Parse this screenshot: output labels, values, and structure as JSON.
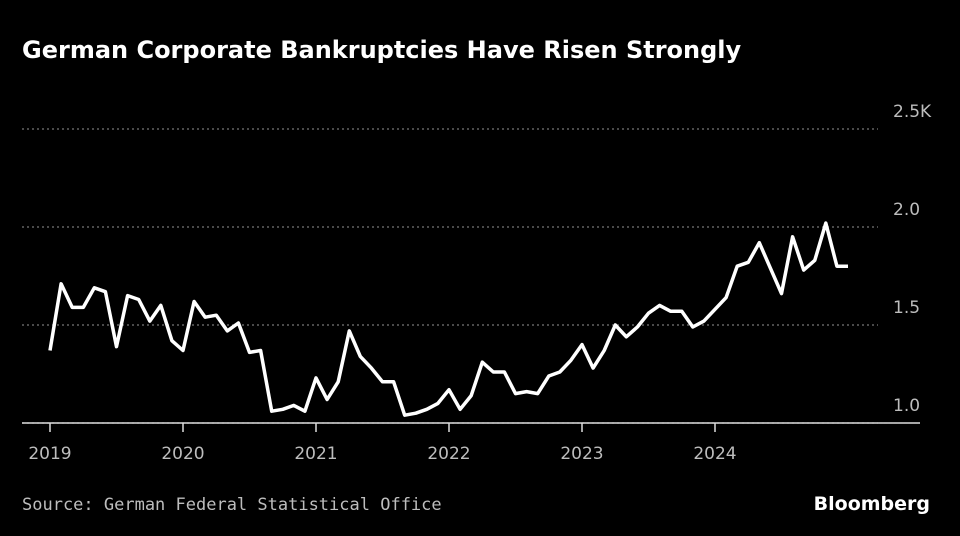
{
  "chart_data": {
    "type": "line",
    "title": "German Corporate Bankruptcies Have Risen Strongly",
    "source": "Source: German Federal Statistical Office",
    "logo": "Bloomberg",
    "categories": [
      "2019",
      null,
      null,
      null,
      null,
      null,
      null,
      null,
      null,
      null,
      null,
      null,
      "2020",
      null,
      null,
      null,
      null,
      null,
      null,
      null,
      null,
      null,
      null,
      null,
      "2021",
      null,
      null,
      null,
      null,
      null,
      null,
      null,
      null,
      null,
      null,
      null,
      "2022",
      null,
      null,
      null,
      null,
      null,
      null,
      null,
      null,
      null,
      null,
      null,
      "2023",
      null,
      null,
      null,
      null,
      null,
      null,
      null,
      null,
      null,
      null,
      null,
      "2024",
      null,
      null,
      null,
      null,
      null,
      null,
      null,
      null,
      null,
      null,
      null,
      null
    ],
    "series": [
      {
        "name": "Bankruptcies",
        "color": "#ffffff",
        "values": [
          1.37,
          1.71,
          1.59,
          1.59,
          1.69,
          1.67,
          1.39,
          1.65,
          1.63,
          1.52,
          1.6,
          1.42,
          1.37,
          1.62,
          1.54,
          1.55,
          1.47,
          1.51,
          1.36,
          1.37,
          1.06,
          1.07,
          1.09,
          1.06,
          1.23,
          1.12,
          1.21,
          1.47,
          1.34,
          1.28,
          1.21,
          1.21,
          1.04,
          1.05,
          1.07,
          1.1,
          1.17,
          1.07,
          1.14,
          1.31,
          1.26,
          1.26,
          1.15,
          1.16,
          1.15,
          1.24,
          1.26,
          1.32,
          1.4,
          1.28,
          1.37,
          1.5,
          1.44,
          1.49,
          1.56,
          1.6,
          1.57,
          1.57,
          1.49,
          1.52,
          1.58,
          1.64,
          1.8,
          1.82,
          1.92,
          1.79,
          1.66,
          1.95,
          1.78,
          1.83,
          2.02,
          1.8,
          1.8
        ]
      }
    ],
    "ylim": [
      1.0,
      2.5
    ],
    "yticks": [
      {
        "value": 1.0,
        "label": "1.0"
      },
      {
        "value": 1.5,
        "label": "1.5"
      },
      {
        "value": 2.0,
        "label": "2.0"
      },
      {
        "value": 2.5,
        "label": "2.5K"
      }
    ],
    "grid": true
  }
}
